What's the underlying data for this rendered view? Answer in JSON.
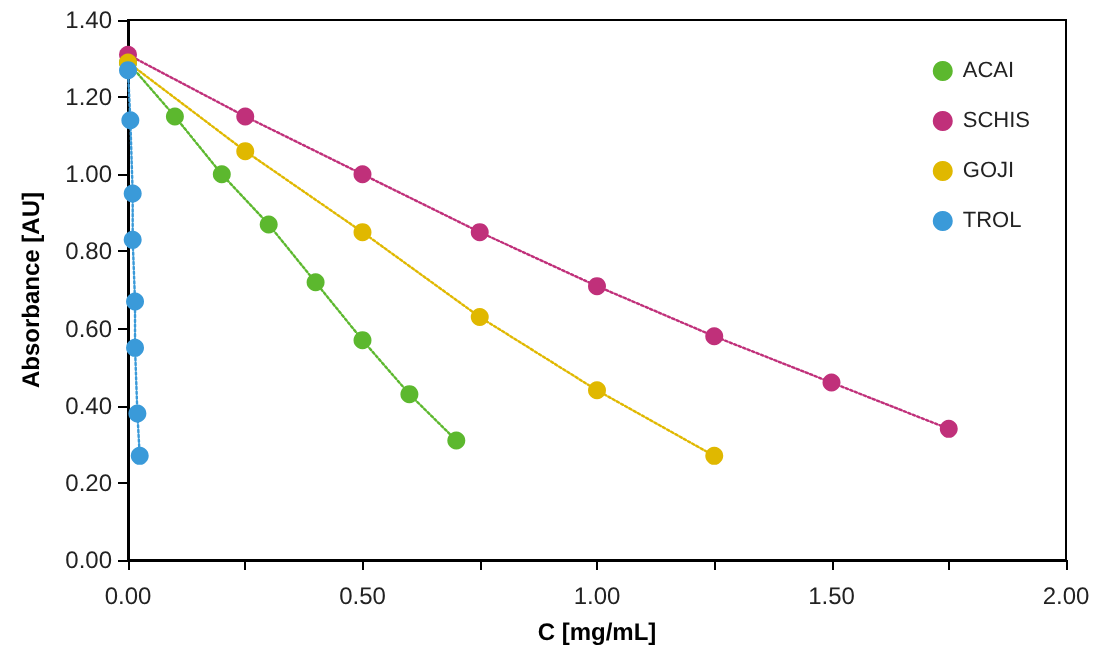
{
  "chart_data": {
    "type": "line",
    "xlabel": "C [mg/mL]",
    "ylabel": "Absorbance [AU]",
    "xlim": [
      0,
      2
    ],
    "xticks": [
      {
        "value": 0,
        "label": "0.00"
      },
      {
        "value": 0.25,
        "label": null
      },
      {
        "value": 0.5,
        "label": "0.50"
      },
      {
        "value": 0.75,
        "label": null
      },
      {
        "value": 1,
        "label": "1.00"
      },
      {
        "value": 1.25,
        "label": null
      },
      {
        "value": 1.5,
        "label": "1.50"
      },
      {
        "value": 1.75,
        "label": null
      },
      {
        "value": 2,
        "label": "2.00"
      }
    ],
    "ylim": [
      0,
      1.4
    ],
    "yticks": [
      {
        "value": 0,
        "label": "0.00"
      },
      {
        "value": 0.2,
        "label": "0.20"
      },
      {
        "value": 0.4,
        "label": "0.40"
      },
      {
        "value": 0.6,
        "label": "0.60"
      },
      {
        "value": 0.8,
        "label": "0.80"
      },
      {
        "value": 1,
        "label": "1.00"
      },
      {
        "value": 1.2,
        "label": "1.20"
      },
      {
        "value": 1.4,
        "label": "1.40"
      }
    ],
    "grid": false,
    "legend": "top right",
    "marker": "circle",
    "line_style": "dotted",
    "series": [
      {
        "name": "ACAI",
        "color": "#5cb82e",
        "x": [
          0,
          0.1,
          0.2,
          0.3,
          0.4,
          0.5,
          0.6,
          0.7
        ],
        "values": [
          1.29,
          1.15,
          1.0,
          0.87,
          0.72,
          0.57,
          0.43,
          0.31
        ]
      },
      {
        "name": "SCHIS",
        "color": "#c0307a",
        "x": [
          0,
          0.25,
          0.5,
          0.75,
          1.0,
          1.25,
          1.5,
          1.75
        ],
        "values": [
          1.31,
          1.15,
          1.0,
          0.85,
          0.71,
          0.58,
          0.46,
          0.34
        ]
      },
      {
        "name": "GOJI",
        "color": "#e0b800",
        "x": [
          0,
          0.25,
          0.5,
          0.75,
          1.0,
          1.25
        ],
        "values": [
          1.29,
          1.06,
          0.85,
          0.63,
          0.44,
          0.27
        ]
      },
      {
        "name": "TROL",
        "color": "#3a9ad9",
        "x": [
          0,
          0.005,
          0.01,
          0.01,
          0.015,
          0.015,
          0.02,
          0.025
        ],
        "values": [
          1.27,
          1.14,
          0.95,
          0.83,
          0.67,
          0.55,
          0.38,
          0.27
        ]
      }
    ]
  }
}
